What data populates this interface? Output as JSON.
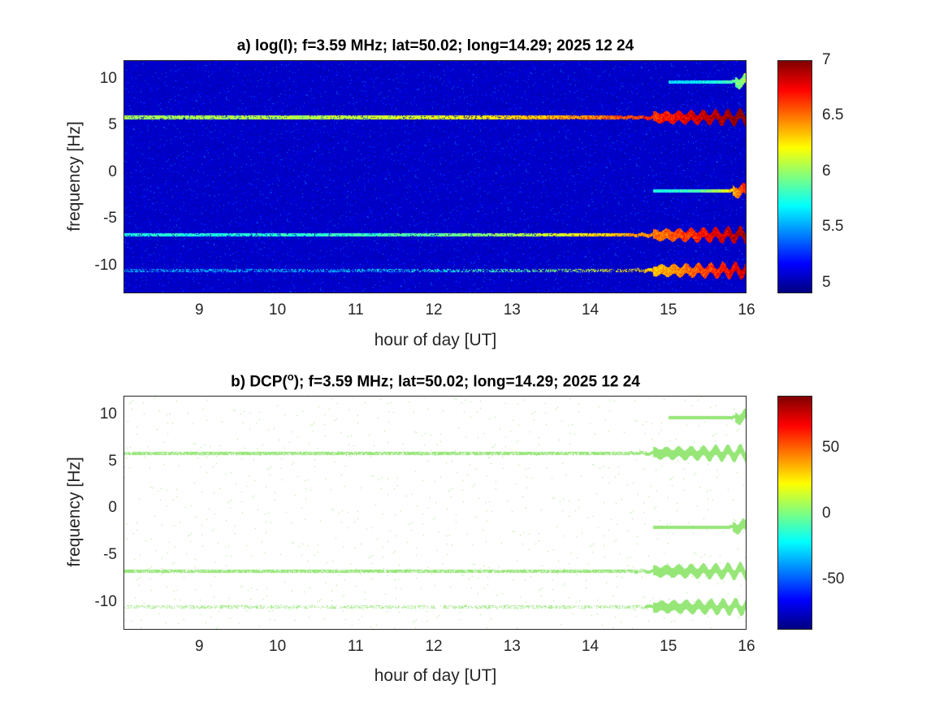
{
  "chart_data": [
    {
      "type": "heatmap",
      "title": "a) log(I); f=3.59 MHz;  lat=50.02; long=14.29; 2025 12 24",
      "xlabel": "hour of day [UT]",
      "ylabel": "frequency [Hz]",
      "xlim": [
        8.03,
        16
      ],
      "ylim": [
        -12.9,
        12
      ],
      "xticks": [
        9,
        10,
        11,
        12,
        13,
        14,
        15,
        16
      ],
      "yticks": [
        -10,
        -5,
        0,
        5,
        10
      ],
      "colormap": "jet",
      "clim": [
        4.91,
        7
      ],
      "colorbar_ticks": [
        5,
        5.5,
        6,
        6.5,
        7
      ],
      "background_value": 5.0,
      "features": [
        {
          "freq": 5.9,
          "start": 8.03,
          "end": 16,
          "value_start": 5.9,
          "value_end": 6.9
        },
        {
          "freq": -6.7,
          "start": 8.03,
          "end": 16,
          "value_start": 5.6,
          "value_end": 6.8
        },
        {
          "freq": -10.5,
          "start": 8.03,
          "end": 16,
          "value_start": 5.4,
          "value_end": 6.7
        },
        {
          "freq": 9.7,
          "start": 15.0,
          "end": 16,
          "value_start": 5.5,
          "value_end": 5.9
        },
        {
          "freq": -2.0,
          "start": 14.8,
          "end": 16,
          "value_start": 5.6,
          "value_end": 6.6
        }
      ]
    },
    {
      "type": "heatmap",
      "title": "b) DCP(",
      "title_sup": "o",
      "title_rest": "); f=3.59 MHz;  lat=50.02; long=14.29; 2025 12 24",
      "xlabel": "hour of day [UT]",
      "ylabel": "frequency [Hz]",
      "xlim": [
        8.03,
        16
      ],
      "ylim": [
        -12.9,
        12
      ],
      "xticks": [
        9,
        10,
        11,
        12,
        13,
        14,
        15,
        16
      ],
      "yticks": [
        -10,
        -5,
        0,
        5,
        10
      ],
      "colormap": "jet",
      "clim": [
        -88,
        89.5
      ],
      "colorbar_ticks": [
        -50,
        0,
        50
      ],
      "feature_value": 15,
      "features": [
        {
          "freq": 5.9,
          "start": 8.03,
          "end": 16
        },
        {
          "freq": -6.7,
          "start": 8.03,
          "end": 16
        },
        {
          "freq": -10.5,
          "start": 8.03,
          "end": 16
        },
        {
          "freq": 9.7,
          "start": 15.0,
          "end": 16
        },
        {
          "freq": -2.0,
          "start": 14.8,
          "end": 16
        }
      ]
    }
  ]
}
